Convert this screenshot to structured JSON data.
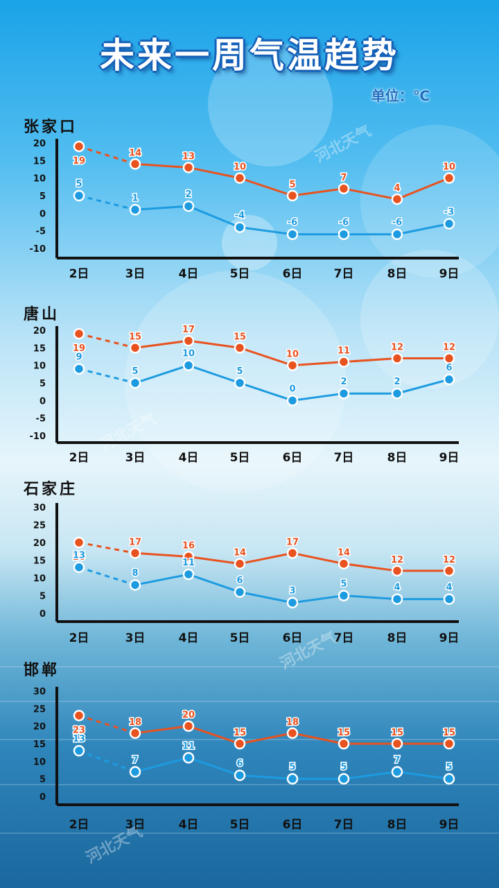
{
  "title": "未来一周气温趋势",
  "unit": "单位：℃",
  "watermark": "河北天气",
  "colors": {
    "high": "#e8521f",
    "low": "#1d9be0",
    "axis": "#111111"
  },
  "chart_data": [
    {
      "type": "line",
      "title": "张家口",
      "categories": [
        "2日",
        "3日",
        "4日",
        "5日",
        "6日",
        "7日",
        "8日",
        "9日"
      ],
      "yticks": [
        20,
        15,
        10,
        5,
        0,
        -5,
        -10
      ],
      "ylim": [
        -10,
        20
      ],
      "series": [
        {
          "values": [
            19,
            14,
            13,
            10,
            5,
            7,
            4,
            10
          ],
          "color": "#e8521f"
        },
        {
          "values": [
            5,
            1,
            2,
            -4,
            -6,
            -6,
            -6,
            -3
          ],
          "color": "#1d9be0"
        }
      ],
      "first_segment_dashed": true
    },
    {
      "type": "line",
      "title": "唐山",
      "categories": [
        "2日",
        "3日",
        "4日",
        "5日",
        "6日",
        "7日",
        "8日",
        "9日"
      ],
      "yticks": [
        20,
        15,
        10,
        5,
        0,
        -5,
        -10
      ],
      "ylim": [
        -10,
        20
      ],
      "series": [
        {
          "values": [
            19,
            15,
            17,
            15,
            10,
            11,
            12,
            12
          ],
          "color": "#e8521f"
        },
        {
          "values": [
            9,
            5,
            10,
            5,
            0,
            2,
            2,
            6
          ],
          "color": "#1d9be0"
        }
      ],
      "first_segment_dashed": true
    },
    {
      "type": "line",
      "title": "石家庄",
      "categories": [
        "2日",
        "3日",
        "4日",
        "5日",
        "6日",
        "7日",
        "8日",
        "9日"
      ],
      "yticks": [
        30,
        25,
        20,
        15,
        10,
        5,
        0
      ],
      "ylim": [
        0,
        30
      ],
      "series": [
        {
          "values": [
            20,
            17,
            16,
            14,
            17,
            14,
            12,
            12
          ],
          "color": "#e8521f"
        },
        {
          "values": [
            13,
            8,
            11,
            6,
            3,
            5,
            4,
            4
          ],
          "color": "#1d9be0"
        }
      ],
      "first_segment_dashed": true
    },
    {
      "type": "line",
      "title": "邯郸",
      "categories": [
        "2日",
        "3日",
        "4日",
        "5日",
        "6日",
        "7日",
        "8日",
        "9日"
      ],
      "yticks": [
        30,
        25,
        20,
        15,
        10,
        5,
        0
      ],
      "ylim": [
        0,
        30
      ],
      "series": [
        {
          "values": [
            23,
            18,
            20,
            15,
            18,
            15,
            15,
            15
          ],
          "color": "#e8521f"
        },
        {
          "values": [
            13,
            7,
            11,
            6,
            5,
            5,
            7,
            5
          ],
          "color": "#1d9be0"
        }
      ],
      "first_segment_dashed": true
    }
  ]
}
